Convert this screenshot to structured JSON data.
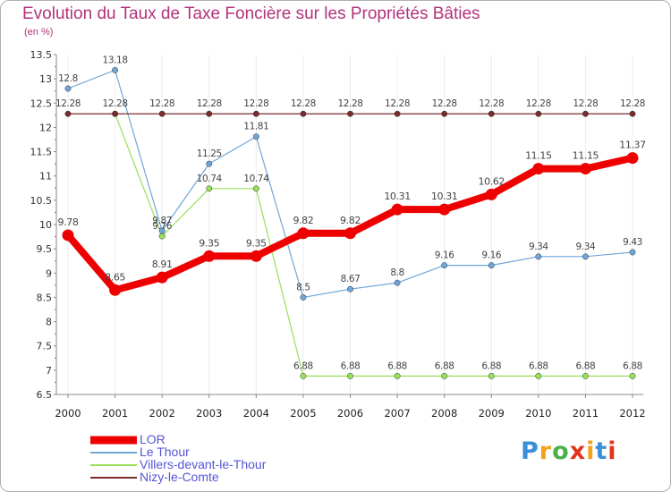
{
  "chart_data": {
    "type": "line",
    "title": "Evolution du Taux de Taxe Foncière sur les Propriétés Bâties",
    "subtitle": "(en %)",
    "xlabel": "",
    "ylabel": "",
    "categories": [
      "2000",
      "2001",
      "2002",
      "2003",
      "2004",
      "2005",
      "2006",
      "2007",
      "2008",
      "2009",
      "2010",
      "2011",
      "2012"
    ],
    "ylim": [
      6.5,
      13.5
    ],
    "yticks": [
      6.5,
      7,
      7.5,
      8,
      8.5,
      9,
      9.5,
      10,
      10.5,
      11,
      11.5,
      12,
      12.5,
      13,
      13.5
    ],
    "ytick_labels": [
      "6.5",
      "7",
      "7.5",
      "8",
      "8.5",
      "9",
      "9.5",
      "10",
      "10.5",
      "11",
      "11.5",
      "12",
      "12.5",
      "13",
      "13.5"
    ],
    "grid": "vertical",
    "legend_position": "bottom-left",
    "series": [
      {
        "name": "Villers-devant-le-Thour",
        "color": "#99e05a",
        "values": [
          null,
          12.28,
          9.76,
          10.74,
          10.74,
          6.88,
          6.88,
          6.88,
          6.88,
          6.88,
          6.88,
          6.88,
          6.88
        ],
        "labels": [
          "",
          "",
          "9.76",
          "10.74",
          "10.74",
          "6.88",
          "6.88",
          "6.88",
          "6.88",
          "6.88",
          "6.88",
          "6.88",
          "6.88"
        ]
      },
      {
        "name": "Le Thour",
        "color": "#6fa6d8",
        "values": [
          12.8,
          13.18,
          9.87,
          11.25,
          11.81,
          8.5,
          8.67,
          8.8,
          9.16,
          9.16,
          9.34,
          9.34,
          9.43
        ],
        "labels": [
          "12.8",
          "13.18",
          "9.87",
          "11.25",
          "11.81",
          "8.5",
          "8.67",
          "8.8",
          "9.16",
          "9.16",
          "9.34",
          "9.34",
          "9.43"
        ]
      },
      {
        "name": "Nizy-le-Comte",
        "color": "#7a2b2b",
        "values": [
          12.28,
          12.28,
          12.28,
          12.28,
          12.28,
          12.28,
          12.28,
          12.28,
          12.28,
          12.28,
          12.28,
          12.28,
          12.28
        ],
        "labels": [
          "12.28",
          "12.28",
          "12.28",
          "12.28",
          "12.28",
          "12.28",
          "12.28",
          "12.28",
          "12.28",
          "12.28",
          "12.28",
          "12.28",
          "12.28"
        ]
      },
      {
        "name": "LOR",
        "color": "#ee0000",
        "values": [
          9.78,
          8.65,
          8.91,
          9.35,
          9.35,
          9.82,
          9.82,
          10.31,
          10.31,
          10.62,
          11.15,
          11.15,
          11.37
        ],
        "labels": [
          "9.78",
          "8.65",
          "8.91",
          "9.35",
          "9.35",
          "9.82",
          "9.82",
          "10.31",
          "10.31",
          "10.62",
          "11.15",
          "11.15",
          "11.37"
        ]
      }
    ],
    "legend": [
      "LOR",
      "Le Thour",
      "Villers-devant-le-Thour",
      "Nizy-le-Comte"
    ]
  },
  "legend_colors": {
    "LOR": "#ee0000",
    "Le Thour": "#6fa6d8",
    "Villers-devant-le-Thour": "#99e05a",
    "Nizy-le-Comte": "#7a2b2b"
  },
  "brand": {
    "letters": [
      "P",
      "r",
      "o",
      "x",
      "i",
      "t",
      "i"
    ],
    "colors": [
      "#3a8fd6",
      "#f4a11b",
      "#4bb04b",
      "#e0341f",
      "#f4a11b",
      "#3a8fd6",
      "#e0341f"
    ]
  }
}
